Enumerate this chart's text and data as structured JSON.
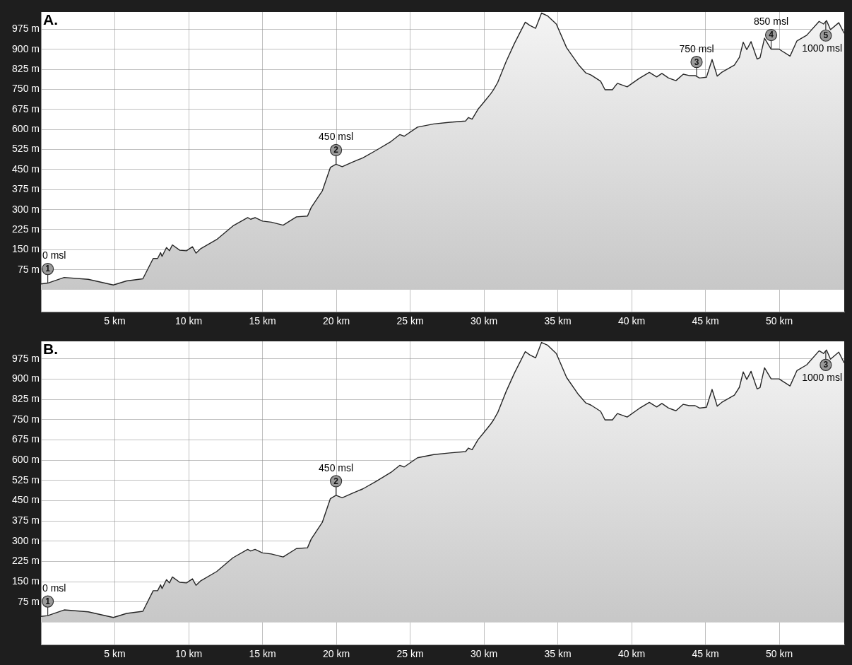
{
  "chart_data": [
    {
      "type": "area",
      "title": "A.",
      "x": [
        0,
        0.46,
        1.57,
        3.2,
        4.9,
        5.8,
        6.9,
        7.6,
        7.9,
        8.1,
        8.2,
        8.5,
        8.7,
        8.9,
        9.4,
        9.85,
        10.26,
        10.5,
        10.8,
        11.9,
        13.0,
        14.0,
        14.2,
        14.5,
        15.0,
        15.6,
        16.4,
        17.3,
        18.05,
        18.3,
        19.06,
        19.6,
        19.98,
        20.4,
        21.1,
        21.8,
        22.7,
        23.7,
        24.3,
        24.6,
        25.5,
        26.6,
        27.7,
        28.76,
        28.95,
        29.2,
        29.6,
        29.99,
        30.46,
        30.65,
        30.93,
        31.5,
        32.06,
        32.8,
        33.1,
        33.5,
        33.9,
        34.3,
        34.9,
        35.6,
        36.4,
        36.9,
        37.25,
        37.9,
        38.2,
        38.7,
        38.85,
        39.04,
        39.7,
        40.5,
        41.2,
        41.7,
        42.05,
        42.5,
        43.0,
        43.5,
        43.9,
        44.3,
        44.6,
        45.07,
        45.45,
        45.8,
        46.1,
        46.96,
        47.3,
        47.56,
        47.8,
        48.09,
        48.5,
        48.7,
        49.0,
        49.45,
        49.98,
        50.73,
        51.2,
        51.86,
        52.7,
        53.0,
        53.2,
        53.47,
        54.03,
        54.4
      ],
      "series": [
        {
          "color": "#c4c4c4",
          "values": [
            22,
            25,
            46,
            39,
            18,
            33,
            41,
            117,
            117,
            139,
            125,
            158,
            146,
            168,
            148,
            146,
            161,
            137,
            153,
            188,
            239,
            270,
            264,
            270,
            257,
            253,
            242,
            273,
            276,
            308,
            371,
            458,
            470,
            461,
            478,
            494,
            522,
            555,
            581,
            575,
            609,
            621,
            627,
            632,
            645,
            639,
            676,
            702,
            734,
            749,
            776,
            854,
            922,
            1002,
            990,
            979,
            1036,
            1026,
            995,
            906,
            843,
            812,
            804,
            781,
            749,
            749,
            760,
            773,
            760,
            791,
            814,
            797,
            810,
            793,
            783,
            807,
            802,
            802,
            793,
            796,
            862,
            800,
            814,
            841,
            870,
            927,
            899,
            929,
            864,
            869,
            942,
            901,
            901,
            875,
            932,
            953,
            1005,
            995,
            1008,
            974,
            1000,
            960
          ]
        }
      ],
      "xlim": [
        0,
        54.4
      ],
      "ylim": [
        -82,
        1040
      ],
      "xticks": [
        {
          "value": 5,
          "label": "5 km"
        },
        {
          "value": 10,
          "label": "10 km"
        },
        {
          "value": 15,
          "label": "15 km"
        },
        {
          "value": 20,
          "label": "20 km"
        },
        {
          "value": 25,
          "label": "25 km"
        },
        {
          "value": 30,
          "label": "30 km"
        },
        {
          "value": 35,
          "label": "35 km"
        },
        {
          "value": 40,
          "label": "40 km"
        },
        {
          "value": 45,
          "label": "45 km"
        },
        {
          "value": 50,
          "label": "50 km"
        }
      ],
      "yticks": [
        {
          "value": 75,
          "label": "75 m"
        },
        {
          "value": 150,
          "label": "150 m"
        },
        {
          "value": 225,
          "label": "225 m"
        },
        {
          "value": 300,
          "label": "300 m"
        },
        {
          "value": 375,
          "label": "375 m"
        },
        {
          "value": 450,
          "label": "450 m"
        },
        {
          "value": 525,
          "label": "525 m"
        },
        {
          "value": 600,
          "label": "600 m"
        },
        {
          "value": 675,
          "label": "675 m"
        },
        {
          "value": 750,
          "label": "750 m"
        },
        {
          "value": 825,
          "label": "825 m"
        },
        {
          "value": 900,
          "label": "900 m"
        },
        {
          "value": 975,
          "label": "975 m"
        }
      ],
      "grid": true,
      "annotations": [
        {
          "text": "1",
          "x": 0.46,
          "y": 25
        },
        {
          "text": "0 msl",
          "x": 0.46,
          "y": 25
        },
        {
          "text": "2",
          "x": 19.98,
          "y": 470
        },
        {
          "text": "450 msl",
          "x": 19.98,
          "y": 470
        },
        {
          "text": "3",
          "x": 44.4,
          "y": 800
        },
        {
          "text": "750 msl",
          "x": 44.4,
          "y": 800
        },
        {
          "text": "4",
          "x": 49.45,
          "y": 901
        },
        {
          "text": "850 msl",
          "x": 49.45,
          "y": 901
        },
        {
          "text": "5",
          "x": 53.15,
          "y": 1005
        },
        {
          "text": "1000 msl",
          "x": 53.15,
          "y": 1005
        }
      ]
    },
    {
      "type": "area",
      "title": "B.",
      "x": [
        0,
        0.46,
        1.57,
        3.2,
        4.9,
        5.8,
        6.9,
        7.6,
        7.9,
        8.1,
        8.2,
        8.5,
        8.7,
        8.9,
        9.4,
        9.85,
        10.26,
        10.5,
        10.8,
        11.9,
        13.0,
        14.0,
        14.2,
        14.5,
        15.0,
        15.6,
        16.4,
        17.3,
        18.05,
        18.3,
        19.06,
        19.6,
        19.98,
        20.4,
        21.1,
        21.8,
        22.7,
        23.7,
        24.3,
        24.6,
        25.5,
        26.6,
        27.7,
        28.76,
        28.95,
        29.2,
        29.6,
        29.99,
        30.46,
        30.65,
        30.93,
        31.5,
        32.06,
        32.8,
        33.1,
        33.5,
        33.9,
        34.3,
        34.9,
        35.6,
        36.4,
        36.9,
        37.25,
        37.9,
        38.2,
        38.7,
        38.85,
        39.04,
        39.7,
        40.5,
        41.2,
        41.7,
        42.05,
        42.5,
        43.0,
        43.5,
        43.9,
        44.3,
        44.6,
        45.07,
        45.45,
        45.8,
        46.1,
        46.96,
        47.3,
        47.56,
        47.8,
        48.09,
        48.5,
        48.7,
        49.0,
        49.45,
        49.98,
        50.73,
        51.2,
        51.86,
        52.7,
        53.0,
        53.2,
        53.47,
        54.03,
        54.4
      ],
      "series": [
        {
          "color": "#c4c4c4",
          "values": [
            22,
            25,
            46,
            39,
            18,
            33,
            41,
            117,
            117,
            139,
            125,
            158,
            146,
            168,
            148,
            146,
            161,
            137,
            153,
            188,
            239,
            270,
            264,
            270,
            257,
            253,
            242,
            273,
            276,
            308,
            371,
            458,
            470,
            461,
            478,
            494,
            522,
            555,
            581,
            575,
            609,
            621,
            627,
            632,
            645,
            639,
            676,
            702,
            734,
            749,
            776,
            854,
            922,
            1002,
            990,
            979,
            1036,
            1026,
            995,
            906,
            843,
            812,
            804,
            781,
            749,
            749,
            760,
            773,
            760,
            791,
            814,
            797,
            810,
            793,
            783,
            807,
            802,
            802,
            793,
            796,
            862,
            800,
            814,
            841,
            870,
            927,
            899,
            929,
            864,
            869,
            942,
            901,
            901,
            875,
            932,
            953,
            1005,
            995,
            1008,
            974,
            1000,
            960
          ]
        }
      ],
      "xlim": [
        0,
        54.4
      ],
      "ylim": [
        -82,
        1040
      ],
      "xticks": [
        {
          "value": 5,
          "label": "5 km"
        },
        {
          "value": 10,
          "label": "10 km"
        },
        {
          "value": 15,
          "label": "15 km"
        },
        {
          "value": 20,
          "label": "20 km"
        },
        {
          "value": 25,
          "label": "25 km"
        },
        {
          "value": 30,
          "label": "30 km"
        },
        {
          "value": 35,
          "label": "35 km"
        },
        {
          "value": 40,
          "label": "40 km"
        },
        {
          "value": 45,
          "label": "45 km"
        },
        {
          "value": 50,
          "label": "50 km"
        }
      ],
      "yticks": [
        {
          "value": 75,
          "label": "75 m"
        },
        {
          "value": 150,
          "label": "150 m"
        },
        {
          "value": 225,
          "label": "225 m"
        },
        {
          "value": 300,
          "label": "300 m"
        },
        {
          "value": 375,
          "label": "375 m"
        },
        {
          "value": 450,
          "label": "450 m"
        },
        {
          "value": 525,
          "label": "525 m"
        },
        {
          "value": 600,
          "label": "600 m"
        },
        {
          "value": 675,
          "label": "675 m"
        },
        {
          "value": 750,
          "label": "750 m"
        },
        {
          "value": 825,
          "label": "825 m"
        },
        {
          "value": 900,
          "label": "900 m"
        },
        {
          "value": 975,
          "label": "975 m"
        }
      ],
      "grid": true,
      "annotations": [
        {
          "text": "1",
          "x": 0.46,
          "y": 25
        },
        {
          "text": "0 msl",
          "x": 0.46,
          "y": 25
        },
        {
          "text": "2",
          "x": 19.98,
          "y": 470
        },
        {
          "text": "450 msl",
          "x": 19.98,
          "y": 470
        },
        {
          "text": "3",
          "x": 53.15,
          "y": 1005
        },
        {
          "text": "1000 msl",
          "x": 53.15,
          "y": 1005
        }
      ]
    }
  ]
}
